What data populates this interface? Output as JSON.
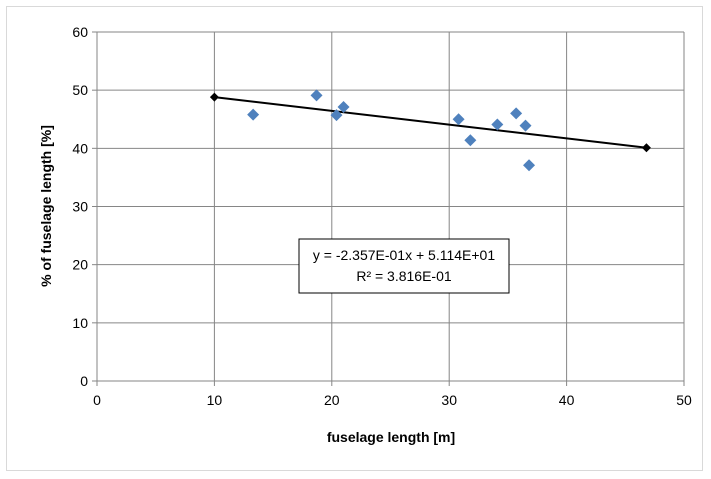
{
  "chart_data": {
    "type": "scatter",
    "title": "",
    "xlabel": "fuselage length [m]",
    "ylabel": "% of fuselage length [%]",
    "xlim": [
      0,
      50
    ],
    "ylim": [
      0,
      60
    ],
    "x_ticks": [
      0,
      10,
      20,
      30,
      40,
      50
    ],
    "y_ticks": [
      0,
      10,
      20,
      30,
      40,
      50,
      60
    ],
    "grid": true,
    "legend": "none",
    "series": [
      {
        "kind": "scatter",
        "marker": "diamond",
        "color": "#4F81BD",
        "points": [
          {
            "x": 13.3,
            "y": 45.8
          },
          {
            "x": 18.7,
            "y": 49.1
          },
          {
            "x": 20.4,
            "y": 45.7
          },
          {
            "x": 21.0,
            "y": 47.1
          },
          {
            "x": 30.8,
            "y": 45.0
          },
          {
            "x": 31.8,
            "y": 41.4
          },
          {
            "x": 34.1,
            "y": 44.1
          },
          {
            "x": 35.7,
            "y": 46.0
          },
          {
            "x": 36.5,
            "y": 43.9
          },
          {
            "x": 36.8,
            "y": 37.1
          }
        ]
      },
      {
        "kind": "trendline",
        "marker": "diamond",
        "color": "#000000",
        "points": [
          {
            "x": 10.0,
            "y": 48.8
          },
          {
            "x": 46.8,
            "y": 40.1
          }
        ]
      }
    ],
    "annotations": {
      "equation": "y = -2.357E-01x + 5.114E+01",
      "r_squared": "R² = 3.816E-01"
    }
  }
}
